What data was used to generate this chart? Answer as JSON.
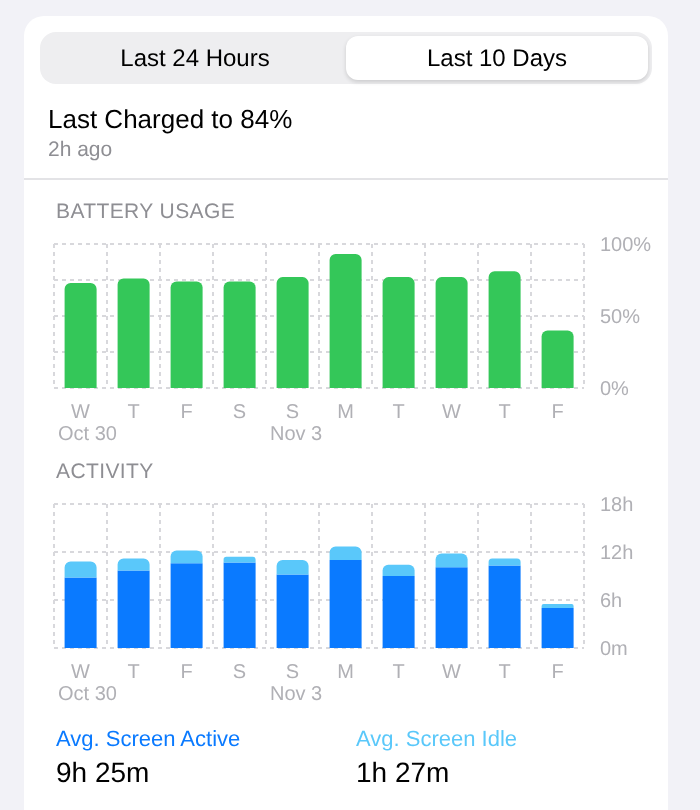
{
  "chart_data": [
    {
      "type": "bar",
      "title": "BATTERY USAGE",
      "categories": [
        "W",
        "T",
        "F",
        "S",
        "S",
        "M",
        "T",
        "W",
        "T",
        "F"
      ],
      "values": [
        73,
        76,
        74,
        74,
        77,
        93,
        77,
        77,
        81,
        40
      ],
      "color": "#34c759",
      "ylim": [
        0,
        100
      ],
      "yticks": [
        {
          "value": 0,
          "label": "0%"
        },
        {
          "value": 25,
          "label": null
        },
        {
          "value": 50,
          "label": "50%"
        },
        {
          "value": 75,
          "label": null
        },
        {
          "value": 100,
          "label": "100%"
        }
      ],
      "grid": true,
      "annotations": [
        "Last 24 Hours",
        "Last 10 Days",
        "Last Charged to 84%",
        "2h ago",
        "Oct 30",
        "Nov 3"
      ]
    },
    {
      "type": "bar",
      "title": "ACTIVITY",
      "categories": [
        "W",
        "T",
        "F",
        "S",
        "S",
        "M",
        "T",
        "W",
        "T",
        "F"
      ],
      "stacked": true,
      "series": [
        {
          "name": "Avg. Screen Active",
          "color": "#0a7aff",
          "values": [
            8.8,
            9.7,
            10.6,
            10.7,
            9.2,
            11.0,
            9.0,
            10.1,
            10.3,
            5.0
          ]
        },
        {
          "name": "Avg. Screen Idle",
          "color": "#5ac8fa",
          "values": [
            2.0,
            1.5,
            1.6,
            0.7,
            1.8,
            1.7,
            1.4,
            1.7,
            0.9,
            0.5
          ]
        }
      ],
      "ylim": [
        0,
        18
      ],
      "yticks": [
        {
          "value": 0,
          "label": "0m"
        },
        {
          "value": 6,
          "label": "6h"
        },
        {
          "value": 12,
          "label": "12h"
        },
        {
          "value": 18,
          "label": "18h"
        }
      ],
      "grid": true,
      "legend": "bottom",
      "annotations": [
        "Oct 30",
        "Nov 3",
        "9h 25m",
        "1h 27m"
      ]
    }
  ]
}
